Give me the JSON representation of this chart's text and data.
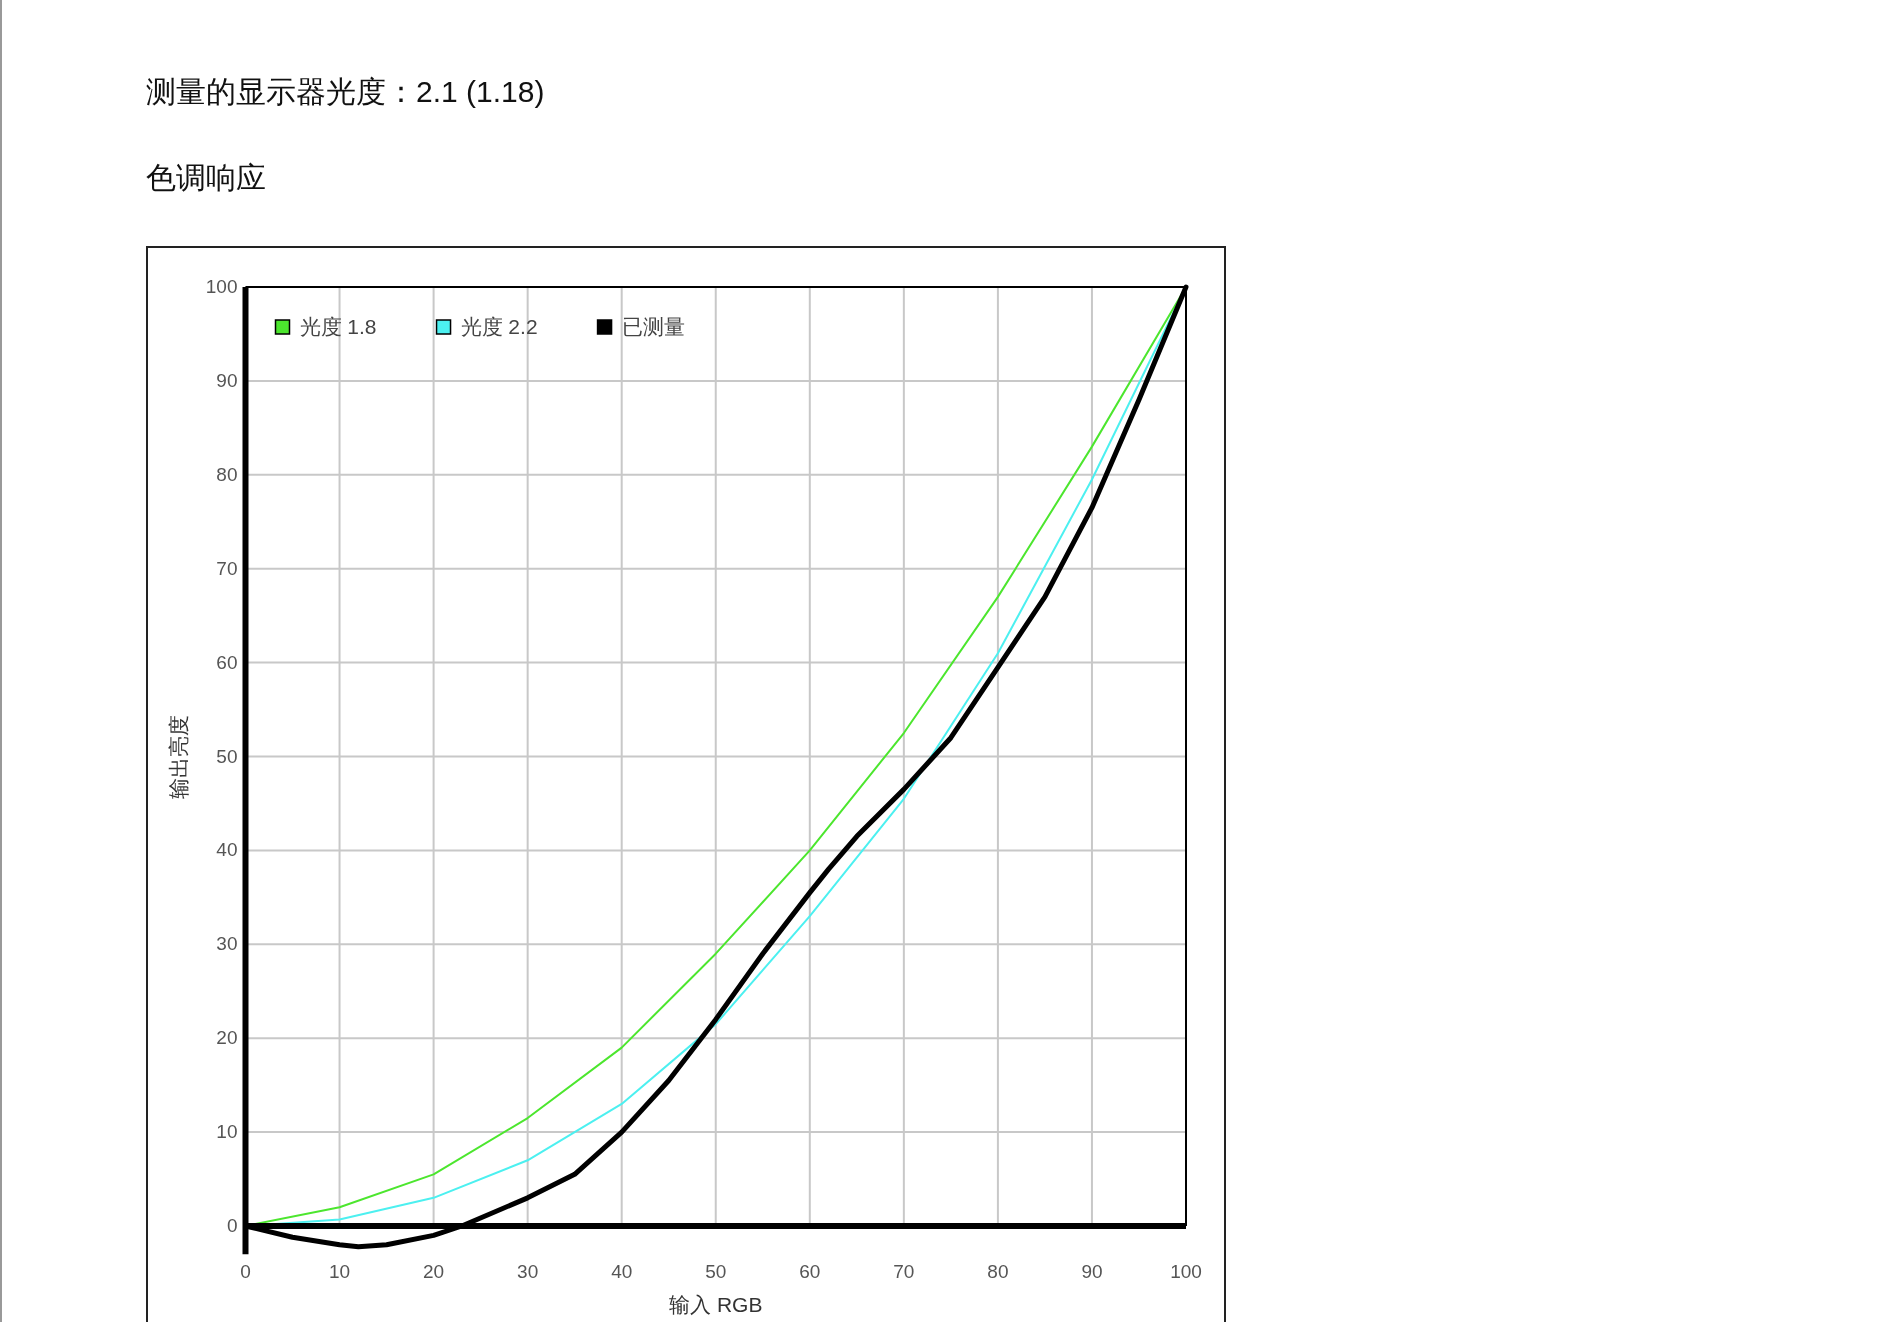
{
  "chart_data": {
    "type": "line",
    "title": "测量的显示器光度：2.1 (1.18)",
    "subtitle": "色调响应",
    "xlabel": "输入 RGB",
    "ylabel": "输出亮度",
    "xlim": [
      0,
      100
    ],
    "ylim": [
      -3,
      100
    ],
    "xticks": [
      0,
      10,
      20,
      30,
      40,
      50,
      60,
      70,
      80,
      90,
      100
    ],
    "yticks": [
      0,
      10,
      20,
      30,
      40,
      50,
      60,
      70,
      80,
      90,
      100
    ],
    "grid": true,
    "legend": "top left",
    "marker": "none",
    "series": [
      {
        "name": "光度 1.8",
        "color": "#4ce62e",
        "x": [
          0,
          10,
          20,
          30,
          40,
          50,
          60,
          70,
          80,
          90,
          100
        ],
        "values": [
          0,
          2,
          5.5,
          11.5,
          19,
          29,
          40,
          52.5,
          67,
          83,
          100
        ]
      },
      {
        "name": "光度 2.2",
        "color": "#4cf0f0",
        "x": [
          0,
          10,
          20,
          30,
          40,
          50,
          60,
          70,
          80,
          90,
          100
        ],
        "values": [
          0,
          0.7,
          3,
          7,
          13,
          21.5,
          33,
          45.5,
          61,
          79.5,
          100
        ]
      },
      {
        "name": "已测量",
        "color": "#000000",
        "x": [
          0,
          5,
          10,
          12,
          15,
          20,
          23,
          30,
          35,
          40,
          45,
          50,
          55,
          60,
          62,
          65,
          70,
          75,
          80,
          85,
          90,
          95,
          100
        ],
        "values": [
          0,
          -1.2,
          -2,
          -2.2,
          -2,
          -1,
          0,
          3,
          5.5,
          10,
          15.5,
          22,
          29,
          35.5,
          38,
          41.5,
          46.5,
          52,
          59.5,
          67,
          76.5,
          88,
          100
        ]
      }
    ]
  }
}
